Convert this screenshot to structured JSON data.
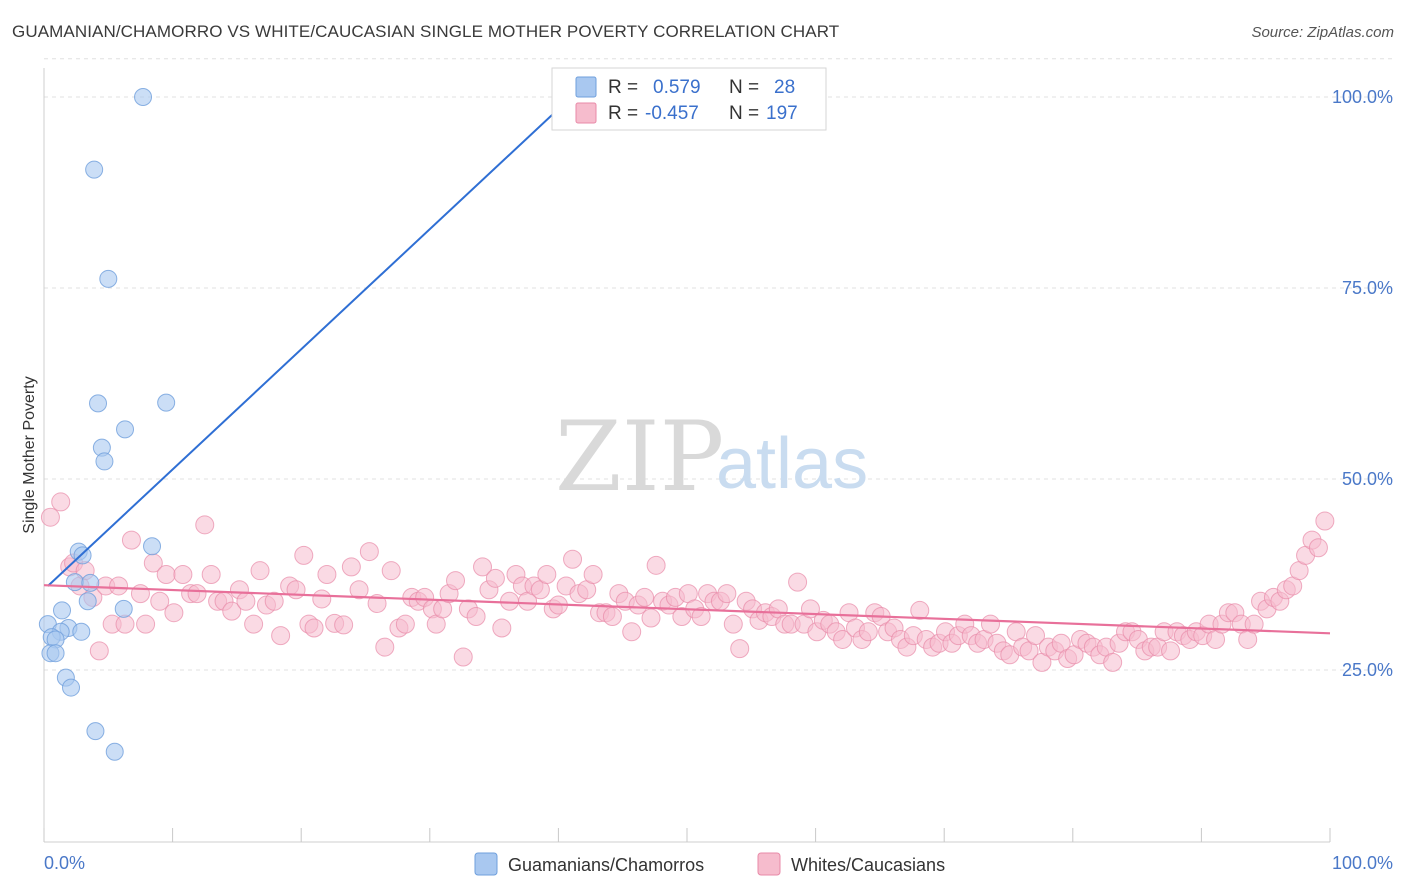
{
  "header": {
    "title": "GUAMANIAN/CHAMORRO VS WHITE/CAUCASIAN SINGLE MOTHER POVERTY CORRELATION CHART",
    "source": "Source: ZipAtlas.com"
  },
  "watermark": {
    "zip": "ZIP",
    "atlas": "atlas"
  },
  "legend": {
    "rows": [
      {
        "r_label": "R =",
        "r_value": "0.579",
        "n_label": "N =",
        "n_value": "28",
        "color": "#a9c8f0",
        "stroke": "#6f9fdc"
      },
      {
        "r_label": "R =",
        "r_value": "-0.457",
        "n_label": "N =",
        "n_value": "197",
        "color": "#f6bccd",
        "stroke": "#e88aa8"
      }
    ]
  },
  "bottom_legend": {
    "items": [
      {
        "label": "Guamanians/Chamorros",
        "color": "#a9c8f0",
        "stroke": "#6f9fdc"
      },
      {
        "label": "Whites/Caucasians",
        "color": "#f6bccd",
        "stroke": "#e88aa8"
      }
    ]
  },
  "colors": {
    "blue_line": "#2f6fd4",
    "pink_line": "#e8709a",
    "grid": "#e0e0e0",
    "tick_text": "#4a78c8"
  },
  "chart_data": {
    "type": "scatter",
    "ylabel": "Single Mother Poverty",
    "xlim": [
      0,
      100
    ],
    "ylim": [
      0,
      105
    ],
    "x_tick_labels": [
      "0.0%",
      "100.0%"
    ],
    "y_ticks": [
      {
        "value": 100,
        "label": "100.0%"
      },
      {
        "value": 75,
        "label": "75.0%"
      },
      {
        "value": 50,
        "label": "50.0%"
      },
      {
        "value": 25,
        "label": "25.0%"
      }
    ],
    "grid": true,
    "series": [
      {
        "name": "Guamanians/Chamorros",
        "points": [
          [
            7.7,
            100
          ],
          [
            3.9,
            90.5
          ],
          [
            5,
            76.2
          ],
          [
            4.2,
            59.9
          ],
          [
            9.5,
            60
          ],
          [
            6.3,
            56.5
          ],
          [
            4.5,
            54.1
          ],
          [
            4.7,
            52.3
          ],
          [
            8.4,
            41.2
          ],
          [
            2.7,
            40.5
          ],
          [
            3.0,
            40.0
          ],
          [
            2.4,
            36.5
          ],
          [
            3.6,
            36.4
          ],
          [
            3.4,
            34
          ],
          [
            6.2,
            33
          ],
          [
            1.4,
            32.8
          ],
          [
            1.9,
            30.5
          ],
          [
            0.3,
            31
          ],
          [
            1.3,
            30
          ],
          [
            2.9,
            30
          ],
          [
            0.6,
            29.3
          ],
          [
            0.9,
            29
          ],
          [
            0.5,
            27.2
          ],
          [
            0.9,
            27.2
          ],
          [
            1.7,
            24
          ],
          [
            2.1,
            22.7
          ],
          [
            4.0,
            17
          ],
          [
            5.5,
            14.3
          ]
        ],
        "trend": [
          [
            0.3,
            36.0
          ],
          [
            41,
            100
          ]
        ]
      },
      {
        "name": "Whites/Caucasians",
        "points": [
          [
            0.5,
            45
          ],
          [
            1.3,
            47
          ],
          [
            2,
            38.5
          ],
          [
            2.3,
            39
          ],
          [
            2.8,
            36
          ],
          [
            3.2,
            38
          ],
          [
            3.8,
            34.5
          ],
          [
            4.3,
            27.5
          ],
          [
            4.8,
            36
          ],
          [
            5.3,
            31
          ],
          [
            5.8,
            36
          ],
          [
            6.3,
            31
          ],
          [
            6.8,
            42
          ],
          [
            7.5,
            35
          ],
          [
            7.9,
            31
          ],
          [
            8.5,
            39
          ],
          [
            9,
            34
          ],
          [
            9.5,
            37.5
          ],
          [
            10.1,
            32.5
          ],
          [
            10.8,
            37.5
          ],
          [
            11.4,
            35
          ],
          [
            11.9,
            35
          ],
          [
            12.5,
            44
          ],
          [
            13,
            37.5
          ],
          [
            13.5,
            34
          ],
          [
            14,
            34
          ],
          [
            14.6,
            32.7
          ],
          [
            15.2,
            35.5
          ],
          [
            15.7,
            34
          ],
          [
            16.3,
            31
          ],
          [
            16.8,
            38
          ],
          [
            17.3,
            33.5
          ],
          [
            17.9,
            34
          ],
          [
            18.4,
            29.5
          ],
          [
            19.1,
            36
          ],
          [
            19.6,
            35.5
          ],
          [
            20.2,
            40
          ],
          [
            20.6,
            31
          ],
          [
            21,
            30.5
          ],
          [
            21.6,
            34.3
          ],
          [
            22,
            37.5
          ],
          [
            22.6,
            31.1
          ],
          [
            23.3,
            30.9
          ],
          [
            23.9,
            38.5
          ],
          [
            24.5,
            35.5
          ],
          [
            25.3,
            40.5
          ],
          [
            25.9,
            33.7
          ],
          [
            26.5,
            28
          ],
          [
            27,
            38
          ],
          [
            27.6,
            30.5
          ],
          [
            28.1,
            31
          ],
          [
            28.6,
            34.5
          ],
          [
            29.1,
            34
          ],
          [
            29.6,
            34.5
          ],
          [
            30.2,
            33
          ],
          [
            30.5,
            31
          ],
          [
            31,
            33
          ],
          [
            31.5,
            35
          ],
          [
            32,
            36.7
          ],
          [
            32.6,
            26.7
          ],
          [
            33,
            33
          ],
          [
            33.6,
            32
          ],
          [
            34.1,
            38.5
          ],
          [
            34.6,
            35.5
          ],
          [
            35.1,
            37
          ],
          [
            35.6,
            30.5
          ],
          [
            36.2,
            34
          ],
          [
            36.7,
            37.5
          ],
          [
            37.2,
            36
          ],
          [
            37.6,
            34
          ],
          [
            38.1,
            36
          ],
          [
            38.6,
            35.5
          ],
          [
            39.1,
            37.5
          ],
          [
            39.6,
            33
          ],
          [
            40,
            33.5
          ],
          [
            40.6,
            36
          ],
          [
            41.1,
            39.5
          ],
          [
            41.6,
            35
          ],
          [
            42.2,
            35.5
          ],
          [
            42.7,
            37.5
          ],
          [
            43.2,
            32.5
          ],
          [
            43.7,
            32.5
          ],
          [
            44.2,
            32
          ],
          [
            44.7,
            35
          ],
          [
            45.2,
            34
          ],
          [
            45.7,
            30
          ],
          [
            46.2,
            33.5
          ],
          [
            46.7,
            34.5
          ],
          [
            47.2,
            31.8
          ],
          [
            47.6,
            38.7
          ],
          [
            48.1,
            34
          ],
          [
            48.6,
            33.5
          ],
          [
            49.1,
            34.5
          ],
          [
            49.6,
            32
          ],
          [
            50.1,
            35
          ],
          [
            50.6,
            33
          ],
          [
            51.1,
            32
          ],
          [
            51.6,
            35
          ],
          [
            52.1,
            34
          ],
          [
            52.6,
            34
          ],
          [
            53.1,
            35
          ],
          [
            53.6,
            31
          ],
          [
            54.1,
            27.8
          ],
          [
            54.6,
            34
          ],
          [
            55.1,
            33
          ],
          [
            55.6,
            31.5
          ],
          [
            56.1,
            32.5
          ],
          [
            56.6,
            32
          ],
          [
            57.1,
            33
          ],
          [
            57.6,
            31
          ],
          [
            58.1,
            31
          ],
          [
            58.6,
            36.5
          ],
          [
            59.1,
            31
          ],
          [
            59.6,
            33
          ],
          [
            60.1,
            30
          ],
          [
            60.6,
            31.5
          ],
          [
            61.1,
            31
          ],
          [
            61.6,
            30
          ],
          [
            62.1,
            29
          ],
          [
            62.6,
            32.5
          ],
          [
            63.1,
            30.5
          ],
          [
            63.6,
            29
          ],
          [
            64.1,
            30
          ],
          [
            64.6,
            32.5
          ],
          [
            65.1,
            32
          ],
          [
            65.6,
            30
          ],
          [
            66.1,
            30.5
          ],
          [
            66.6,
            29
          ],
          [
            67.1,
            28
          ],
          [
            67.6,
            29.5
          ],
          [
            68.1,
            32.8
          ],
          [
            68.6,
            29
          ],
          [
            69.1,
            28
          ],
          [
            69.6,
            28.5
          ],
          [
            70.1,
            30
          ],
          [
            70.6,
            28.5
          ],
          [
            71.1,
            29.5
          ],
          [
            71.6,
            31
          ],
          [
            72.1,
            29.5
          ],
          [
            72.6,
            28.5
          ],
          [
            73.1,
            29
          ],
          [
            73.6,
            31
          ],
          [
            74.1,
            28.5
          ],
          [
            74.6,
            27.5
          ],
          [
            75.1,
            27
          ],
          [
            75.6,
            30
          ],
          [
            76.1,
            28
          ],
          [
            76.6,
            27.5
          ],
          [
            77.1,
            29.5
          ],
          [
            77.6,
            26
          ],
          [
            78.1,
            28
          ],
          [
            78.6,
            27.5
          ],
          [
            79.1,
            28.5
          ],
          [
            79.6,
            26.5
          ],
          [
            80.1,
            27
          ],
          [
            80.6,
            29
          ],
          [
            81.1,
            28.5
          ],
          [
            81.6,
            28
          ],
          [
            82.1,
            27
          ],
          [
            82.6,
            28
          ],
          [
            83.1,
            26
          ],
          [
            83.6,
            28.5
          ],
          [
            84.1,
            30
          ],
          [
            84.6,
            30
          ],
          [
            85.1,
            29
          ],
          [
            85.6,
            27.5
          ],
          [
            86.1,
            28
          ],
          [
            86.6,
            28
          ],
          [
            87.1,
            30
          ],
          [
            87.6,
            27.5
          ],
          [
            88.1,
            30
          ],
          [
            88.6,
            29.5
          ],
          [
            89.1,
            29
          ],
          [
            89.6,
            30
          ],
          [
            90.1,
            29.5
          ],
          [
            90.6,
            31
          ],
          [
            91.1,
            29
          ],
          [
            91.6,
            31
          ],
          [
            92.1,
            32.5
          ],
          [
            92.6,
            32.5
          ],
          [
            93.1,
            31
          ],
          [
            93.6,
            29
          ],
          [
            94.1,
            31
          ],
          [
            94.6,
            34
          ],
          [
            95.1,
            33
          ],
          [
            95.6,
            34.5
          ],
          [
            96.1,
            34
          ],
          [
            96.6,
            35.5
          ],
          [
            97.1,
            36
          ],
          [
            97.6,
            38
          ],
          [
            98.1,
            40
          ],
          [
            98.6,
            42
          ],
          [
            99.1,
            41
          ],
          [
            99.6,
            44.5
          ]
        ],
        "trend": [
          [
            0,
            36.1
          ],
          [
            100,
            29.8
          ]
        ]
      }
    ]
  }
}
